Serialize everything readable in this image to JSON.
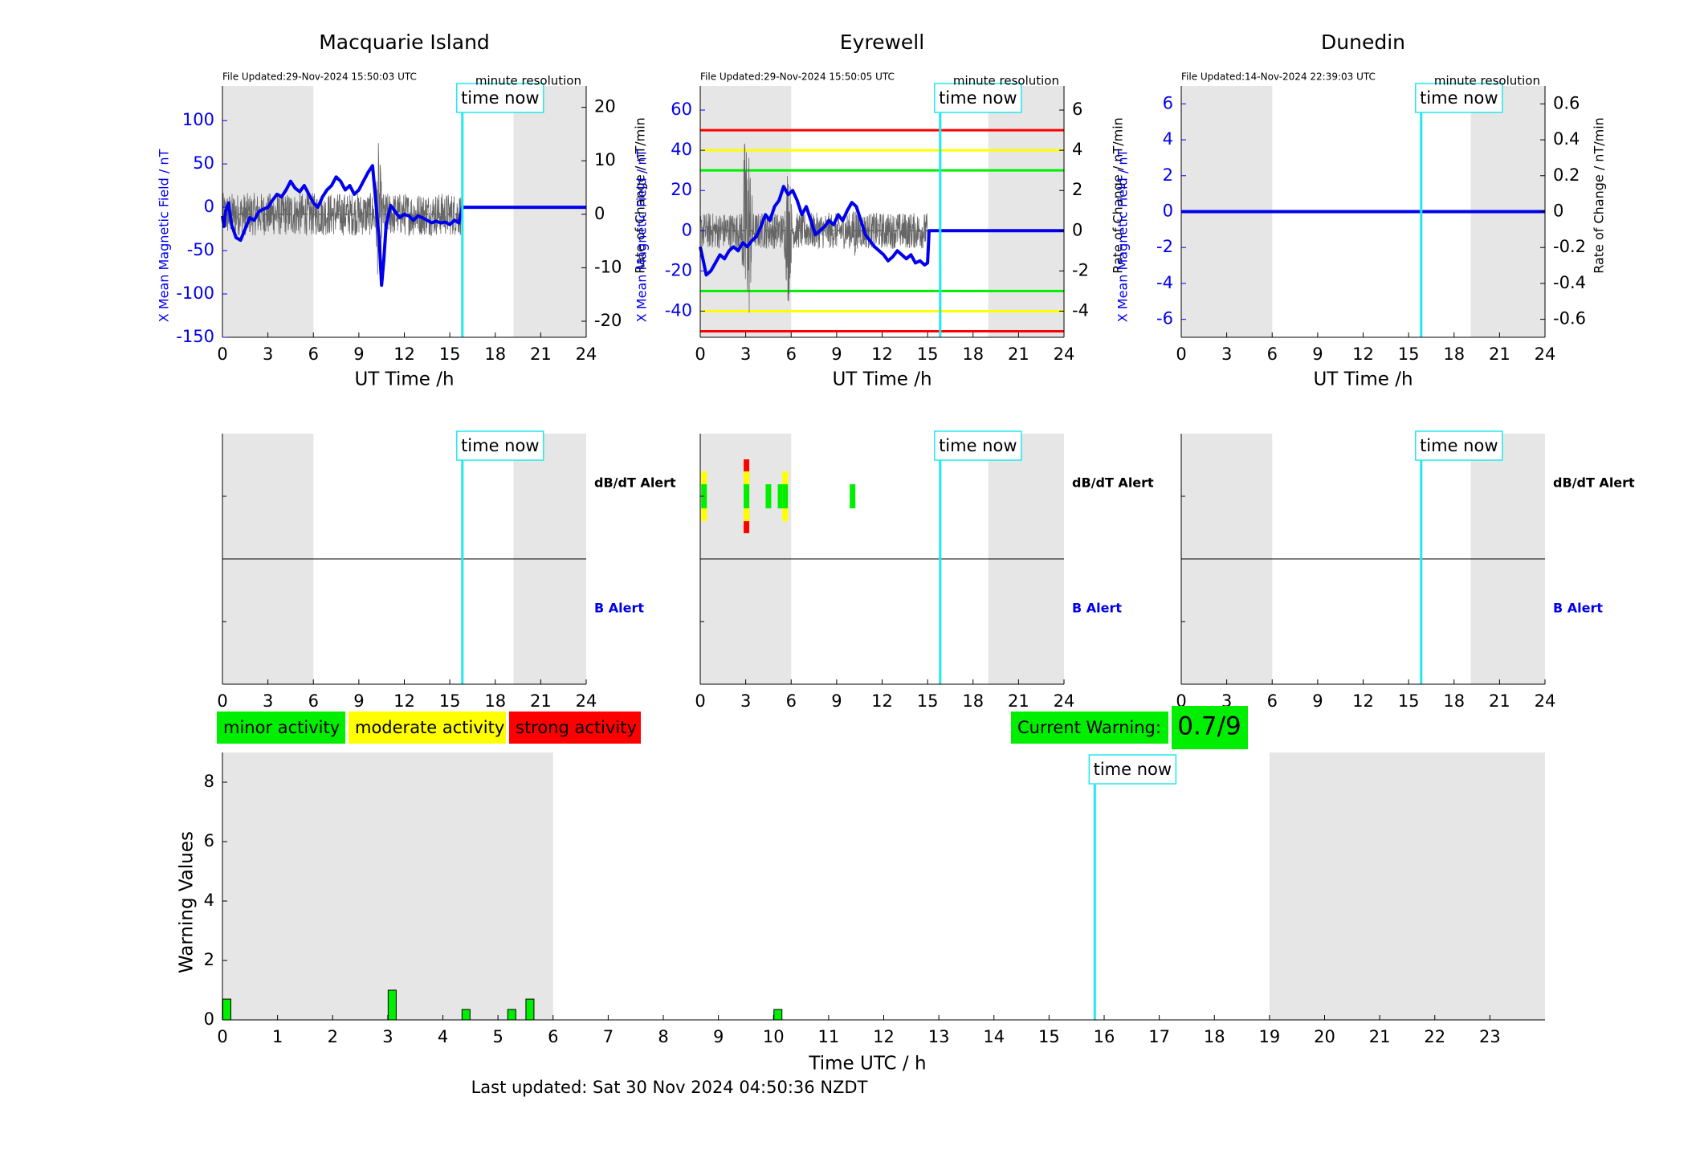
{
  "colors": {
    "blue": "#0000ee",
    "cyan": "#22e8f0",
    "night_shade": "#e6e6e6",
    "minor": "#00ee00",
    "moderate": "#ffff00",
    "strong": "#ff0000",
    "trace_gray": "#666666"
  },
  "common": {
    "time_now_label": "time now",
    "minute_resolution": "minute resolution",
    "ut_xlabel": "UT Time /h",
    "x_field_ylabel": "X Mean Magnetic Field / nT",
    "rate_ylabel": "Rate of Change / nT/min",
    "dbdt_alert_label": "dB/dT Alert",
    "b_alert_label": "B Alert",
    "hour_ticks": [
      "0",
      "3",
      "6",
      "9",
      "12",
      "15",
      "18",
      "21",
      "24"
    ]
  },
  "stations": [
    {
      "name": "Macquarie Island",
      "file_updated": "File Updated:29-Nov-2024 15:50:03 UTC",
      "time_now_h": 15.83,
      "night_h": [
        [
          0,
          6
        ],
        [
          19.2,
          24
        ]
      ],
      "left_ylim": [
        -150,
        140
      ],
      "left_ticks": [
        "-150",
        "-100",
        "-50",
        "0",
        "50",
        "100"
      ],
      "right_ylim": [
        -23,
        24
      ],
      "right_ticks": [
        "-20",
        "-10",
        "0",
        "10",
        "20"
      ],
      "thresholds": [],
      "x_field": {
        "t": [
          0,
          0.1,
          0.2,
          0.4,
          0.6,
          0.9,
          1.2,
          1.5,
          1.8,
          2.1,
          2.4,
          2.7,
          3,
          3.3,
          3.6,
          3.9,
          4.2,
          4.5,
          4.8,
          5.1,
          5.4,
          5.7,
          6,
          6.3,
          6.6,
          6.9,
          7.2,
          7.5,
          7.8,
          8.1,
          8.4,
          8.7,
          9,
          9.3,
          9.6,
          9.9,
          10.05,
          10.2,
          10.35,
          10.5,
          10.65,
          10.8,
          11.1,
          11.4,
          11.7,
          12,
          12.3,
          12.6,
          12.9,
          13.2,
          13.5,
          13.8,
          14.1,
          14.4,
          14.7,
          15,
          15.3,
          15.6,
          15.83,
          24
        ],
        "v": [
          -10,
          -22,
          -5,
          5,
          -20,
          -35,
          -38,
          -25,
          -12,
          -15,
          -5,
          -2,
          0,
          8,
          15,
          12,
          20,
          30,
          22,
          18,
          25,
          15,
          5,
          0,
          12,
          20,
          25,
          35,
          30,
          20,
          25,
          15,
          20,
          30,
          40,
          48,
          20,
          -10,
          -40,
          -90,
          -60,
          -20,
          2,
          -5,
          -12,
          -8,
          -10,
          -15,
          -10,
          -12,
          -15,
          -18,
          -16,
          -18,
          -17,
          -20,
          -15,
          -18,
          0,
          0
        ]
      },
      "rate_trace": {
        "t0": 0,
        "t1": 15.83,
        "amp": 4,
        "bursts": [
          [
            10.3,
            14
          ],
          [
            4.5,
            5
          ],
          [
            1.8,
            4
          ]
        ]
      },
      "dbdt_alert": [],
      "b_alert": []
    },
    {
      "name": "Eyrewell",
      "file_updated": "File Updated:29-Nov-2024 15:50:05 UTC",
      "time_now_h": 15.83,
      "night_h": [
        [
          0,
          6
        ],
        [
          19,
          24
        ]
      ],
      "left_ylim": [
        -53,
        72
      ],
      "left_ticks": [
        "-40",
        "-20",
        "0",
        "20",
        "40",
        "60"
      ],
      "right_ylim": [
        -5.3,
        7.2
      ],
      "right_ticks": [
        "-4",
        "-2",
        "0",
        "2",
        "4",
        "6"
      ],
      "thresholds": [
        {
          "value": 50,
          "level": "strong"
        },
        {
          "value": 40,
          "level": "moderate"
        },
        {
          "value": 30,
          "level": "minor"
        },
        {
          "value": -30,
          "level": "minor"
        },
        {
          "value": -40,
          "level": "moderate"
        },
        {
          "value": -50,
          "level": "strong"
        }
      ],
      "x_field": {
        "t": [
          0,
          0.2,
          0.4,
          0.7,
          1,
          1.3,
          1.6,
          1.9,
          2.2,
          2.5,
          2.8,
          3.1,
          3.4,
          3.7,
          4,
          4.3,
          4.6,
          4.9,
          5.2,
          5.5,
          5.8,
          6.1,
          6.4,
          6.7,
          7,
          7.3,
          7.6,
          7.9,
          8.2,
          8.5,
          8.8,
          9.1,
          9.4,
          9.7,
          10,
          10.3,
          10.6,
          10.9,
          11.2,
          11.5,
          11.8,
          12.1,
          12.4,
          12.7,
          13,
          13.3,
          13.6,
          13.9,
          14.2,
          14.5,
          14.8,
          15,
          15.1,
          24
        ],
        "v": [
          -8,
          -15,
          -22,
          -20,
          -16,
          -12,
          -14,
          -10,
          -8,
          -10,
          -6,
          -8,
          -5,
          -3,
          2,
          8,
          5,
          12,
          15,
          22,
          18,
          20,
          15,
          8,
          12,
          5,
          -2,
          0,
          2,
          5,
          3,
          8,
          5,
          10,
          14,
          12,
          5,
          -2,
          -5,
          -8,
          -10,
          -12,
          -15,
          -13,
          -10,
          -12,
          -14,
          -12,
          -16,
          -15,
          -17,
          -16,
          0,
          0
        ]
      },
      "rate_trace": {
        "t0": 0,
        "t1": 15,
        "amp": 0.9,
        "bursts": [
          [
            3,
            6
          ],
          [
            3.2,
            5
          ],
          [
            5.8,
            4
          ],
          [
            10.2,
            1.6
          ]
        ]
      },
      "dbdt_alert": [
        {
          "t": 0.25,
          "level": "moderate"
        },
        {
          "t": 3.05,
          "level": "strong"
        },
        {
          "t": 4.5,
          "level": "minor"
        },
        {
          "t": 5.3,
          "level": "minor"
        },
        {
          "t": 5.6,
          "level": "moderate"
        },
        {
          "t": 10.05,
          "level": "minor"
        }
      ],
      "b_alert": []
    },
    {
      "name": "Dunedin",
      "file_updated": "File Updated:14-Nov-2024 22:39:03 UTC",
      "time_now_h": 15.83,
      "night_h": [
        [
          0,
          6
        ],
        [
          19.1,
          24
        ]
      ],
      "left_ylim": [
        -7,
        7
      ],
      "left_ticks": [
        "-6",
        "-4",
        "-2",
        "0",
        "2",
        "4",
        "6"
      ],
      "right_ylim": [
        -0.7,
        0.7
      ],
      "right_ticks": [
        "-0.6",
        "-0.4",
        "-0.2",
        "0",
        "0.2",
        "0.4",
        "0.6"
      ],
      "thresholds": [],
      "x_field": {
        "t": [
          0,
          24
        ],
        "v": [
          0,
          0
        ]
      },
      "rate_trace": null,
      "dbdt_alert": [],
      "b_alert": []
    }
  ],
  "legend": [
    {
      "label": "minor activity",
      "level": "minor"
    },
    {
      "label": "moderate activity",
      "level": "moderate"
    },
    {
      "label": "strong activity",
      "level": "strong"
    }
  ],
  "current_warning": {
    "label": "Current Warning:",
    "value": "0.7/9"
  },
  "chart_data": {
    "type": "bar",
    "xlabel": "Time UTC / h",
    "ylabel": "Warning Values",
    "ylim": [
      0,
      9
    ],
    "xlim": [
      0,
      24
    ],
    "y_ticks": [
      "0",
      "2",
      "4",
      "6",
      "8"
    ],
    "x_ticks": [
      "0",
      "1",
      "2",
      "3",
      "4",
      "5",
      "6",
      "7",
      "8",
      "9",
      "10",
      "11",
      "12",
      "13",
      "14",
      "15",
      "16",
      "17",
      "18",
      "19",
      "20",
      "21",
      "22",
      "23"
    ],
    "night_h": [
      [
        0,
        6
      ],
      [
        19,
        24
      ]
    ],
    "time_now_h": 15.83,
    "bars": [
      {
        "t": 0.08,
        "value": 0.7
      },
      {
        "t": 3.08,
        "value": 1.0
      },
      {
        "t": 4.42,
        "value": 0.35
      },
      {
        "t": 5.25,
        "value": 0.35
      },
      {
        "t": 5.58,
        "value": 0.7
      },
      {
        "t": 10.08,
        "value": 0.35
      }
    ]
  },
  "last_updated": "Last updated: Sat 30 Nov 2024 04:50:36 NZDT"
}
